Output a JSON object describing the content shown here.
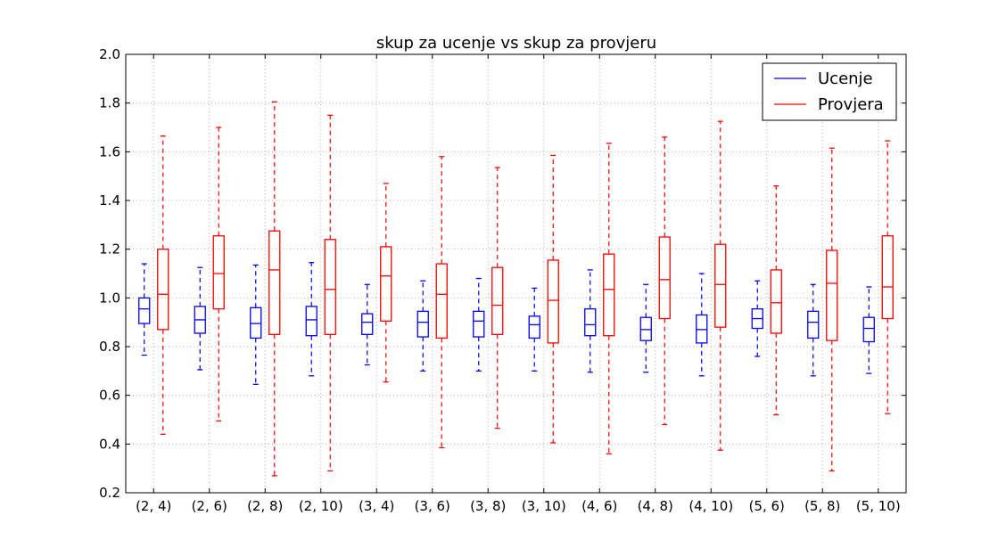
{
  "chart_data": {
    "type": "boxplot",
    "title": "skup za ucenje vs skup za provjeru",
    "xlabel": "",
    "ylabel": "",
    "ylim": [
      0.2,
      2.0
    ],
    "yticks": [
      "0.2",
      "0.4",
      "0.6",
      "0.8",
      "1.0",
      "1.2",
      "1.4",
      "1.6",
      "1.8",
      "2.0"
    ],
    "grid": true,
    "legend_position": "top-right",
    "categories": [
      "(2, 4)",
      "(2, 6)",
      "(2, 8)",
      "(2, 10)",
      "(3, 4)",
      "(3, 6)",
      "(3, 8)",
      "(3, 10)",
      "(4, 6)",
      "(4, 8)",
      "(4, 10)",
      "(5, 6)",
      "(5, 8)",
      "(5, 10)"
    ],
    "series": [
      {
        "name": "Ucenje",
        "color": "#0000ff",
        "boxes": [
          {
            "whislo": 0.765,
            "q1": 0.895,
            "med": 0.955,
            "q3": 1.0,
            "whishi": 1.14
          },
          {
            "whislo": 0.705,
            "q1": 0.855,
            "med": 0.91,
            "q3": 0.965,
            "whishi": 1.125
          },
          {
            "whislo": 0.645,
            "q1": 0.835,
            "med": 0.895,
            "q3": 0.96,
            "whishi": 1.135
          },
          {
            "whislo": 0.68,
            "q1": 0.845,
            "med": 0.91,
            "q3": 0.965,
            "whishi": 1.145
          },
          {
            "whislo": 0.725,
            "q1": 0.85,
            "med": 0.9,
            "q3": 0.935,
            "whishi": 1.055
          },
          {
            "whislo": 0.7,
            "q1": 0.84,
            "med": 0.9,
            "q3": 0.945,
            "whishi": 1.07
          },
          {
            "whislo": 0.7,
            "q1": 0.84,
            "med": 0.905,
            "q3": 0.945,
            "whishi": 1.08
          },
          {
            "whislo": 0.7,
            "q1": 0.835,
            "med": 0.89,
            "q3": 0.925,
            "whishi": 1.04
          },
          {
            "whislo": 0.695,
            "q1": 0.845,
            "med": 0.89,
            "q3": 0.955,
            "whishi": 1.115
          },
          {
            "whislo": 0.695,
            "q1": 0.825,
            "med": 0.87,
            "q3": 0.92,
            "whishi": 1.055
          },
          {
            "whislo": 0.68,
            "q1": 0.815,
            "med": 0.87,
            "q3": 0.93,
            "whishi": 1.1
          },
          {
            "whislo": 0.76,
            "q1": 0.875,
            "med": 0.915,
            "q3": 0.955,
            "whishi": 1.07
          },
          {
            "whislo": 0.68,
            "q1": 0.835,
            "med": 0.9,
            "q3": 0.945,
            "whishi": 1.055
          },
          {
            "whislo": 0.69,
            "q1": 0.82,
            "med": 0.875,
            "q3": 0.92,
            "whishi": 1.045
          }
        ]
      },
      {
        "name": "Provjera",
        "color": "#ff0000",
        "boxes": [
          {
            "whislo": 0.44,
            "q1": 0.87,
            "med": 1.015,
            "q3": 1.2,
            "whishi": 1.665
          },
          {
            "whislo": 0.495,
            "q1": 0.955,
            "med": 1.1,
            "q3": 1.255,
            "whishi": 1.7
          },
          {
            "whislo": 0.27,
            "q1": 0.85,
            "med": 1.115,
            "q3": 1.275,
            "whishi": 1.805
          },
          {
            "whislo": 0.29,
            "q1": 0.85,
            "med": 1.035,
            "q3": 1.24,
            "whishi": 1.75
          },
          {
            "whislo": 0.655,
            "q1": 0.905,
            "med": 1.09,
            "q3": 1.21,
            "whishi": 1.47
          },
          {
            "whislo": 0.385,
            "q1": 0.835,
            "med": 1.015,
            "q3": 1.14,
            "whishi": 1.58
          },
          {
            "whislo": 0.465,
            "q1": 0.85,
            "med": 0.97,
            "q3": 1.125,
            "whishi": 1.535
          },
          {
            "whislo": 0.405,
            "q1": 0.815,
            "med": 0.99,
            "q3": 1.155,
            "whishi": 1.585
          },
          {
            "whislo": 0.36,
            "q1": 0.845,
            "med": 1.035,
            "q3": 1.18,
            "whishi": 1.635
          },
          {
            "whislo": 0.48,
            "q1": 0.915,
            "med": 1.075,
            "q3": 1.25,
            "whishi": 1.66
          },
          {
            "whislo": 0.375,
            "q1": 0.88,
            "med": 1.055,
            "q3": 1.22,
            "whishi": 1.725
          },
          {
            "whislo": 0.52,
            "q1": 0.855,
            "med": 0.98,
            "q3": 1.115,
            "whishi": 1.46
          },
          {
            "whislo": 0.29,
            "q1": 0.825,
            "med": 1.06,
            "q3": 1.195,
            "whishi": 1.615
          },
          {
            "whislo": 0.525,
            "q1": 0.915,
            "med": 1.045,
            "q3": 1.255,
            "whishi": 1.645
          }
        ]
      }
    ]
  }
}
